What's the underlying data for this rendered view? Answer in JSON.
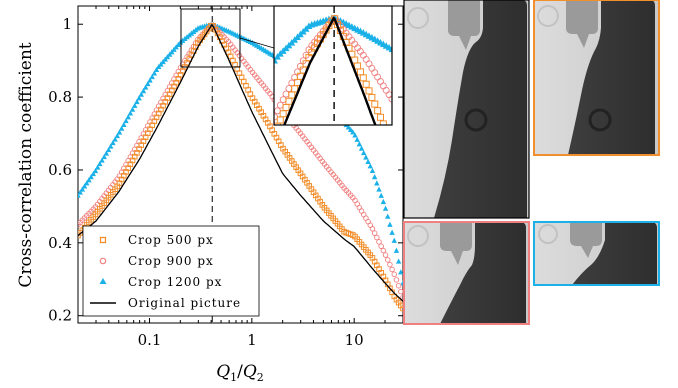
{
  "chart_data": {
    "type": "line",
    "xscale": "log",
    "xlim": [
      0.02,
      30
    ],
    "ylim": [
      0.18,
      1.05
    ],
    "xlabel": "Q1/Q2",
    "ylabel": "Cross-correlation coefficient",
    "xticks": [
      {
        "v": 0.1,
        "label": "0.1"
      },
      {
        "v": 1,
        "label": "1"
      },
      {
        "v": 10,
        "label": "10"
      }
    ],
    "yticks": [
      {
        "v": 0.2,
        "label": "0.2"
      },
      {
        "v": 0.4,
        "label": "0.4"
      },
      {
        "v": 0.6,
        "label": "0.6"
      },
      {
        "v": 0.8,
        "label": "0.8"
      },
      {
        "v": 1,
        "label": "1"
      }
    ],
    "vline_x": 0.41,
    "legend_position": "bottom-left",
    "series": [
      {
        "name": "Crop 500 px",
        "marker": "square",
        "color": "#f28e2b",
        "x": [
          0.02,
          0.03,
          0.05,
          0.08,
          0.12,
          0.2,
          0.3,
          0.41,
          0.6,
          1,
          1.5,
          2,
          3,
          5,
          8,
          10,
          15,
          20,
          25,
          30
        ],
        "y": [
          0.42,
          0.48,
          0.56,
          0.66,
          0.75,
          0.86,
          0.95,
          1.0,
          0.92,
          0.8,
          0.72,
          0.66,
          0.59,
          0.5,
          0.43,
          0.42,
          0.36,
          0.3,
          0.25,
          0.22
        ]
      },
      {
        "name": "Crop 900 px",
        "marker": "circle",
        "color": "#f08080",
        "x": [
          0.02,
          0.03,
          0.05,
          0.08,
          0.12,
          0.2,
          0.3,
          0.41,
          0.6,
          1,
          1.5,
          2,
          3,
          5,
          8,
          10,
          15,
          20,
          25,
          30
        ],
        "y": [
          0.45,
          0.5,
          0.58,
          0.68,
          0.77,
          0.88,
          0.96,
          1.0,
          0.95,
          0.87,
          0.81,
          0.76,
          0.7,
          0.62,
          0.55,
          0.52,
          0.44,
          0.37,
          0.31,
          0.25
        ]
      },
      {
        "name": "Crop 1200 px",
        "marker": "triangle",
        "color": "#1ab0e8",
        "x": [
          0.02,
          0.03,
          0.05,
          0.08,
          0.12,
          0.2,
          0.3,
          0.41,
          0.6,
          1,
          1.5,
          2,
          3,
          5,
          8,
          10,
          15,
          20,
          25,
          30
        ],
        "y": [
          0.53,
          0.6,
          0.7,
          0.8,
          0.88,
          0.95,
          0.99,
          1.0,
          0.98,
          0.95,
          0.92,
          0.9,
          0.86,
          0.8,
          0.73,
          0.7,
          0.6,
          0.5,
          0.4,
          0.29
        ]
      },
      {
        "name": "Original picture",
        "marker": "line",
        "color": "#000000",
        "x": [
          0.02,
          0.03,
          0.05,
          0.08,
          0.12,
          0.2,
          0.3,
          0.41,
          0.6,
          1,
          1.5,
          2,
          3,
          5,
          8,
          10,
          15,
          20,
          25,
          30
        ],
        "y": [
          0.42,
          0.46,
          0.54,
          0.63,
          0.72,
          0.84,
          0.94,
          1.0,
          0.9,
          0.76,
          0.66,
          0.59,
          0.53,
          0.46,
          0.41,
          0.39,
          0.33,
          0.29,
          0.26,
          0.24
        ]
      }
    ]
  },
  "legend": {
    "crop500": "Crop 500 px",
    "crop900": "Crop 900 px",
    "crop1200": "Crop 1200 px",
    "original": "Original picture"
  },
  "colors": {
    "panel_orange": "#f28e2b",
    "panel_salmon": "#f08080",
    "panel_blue": "#1ab0e8"
  }
}
